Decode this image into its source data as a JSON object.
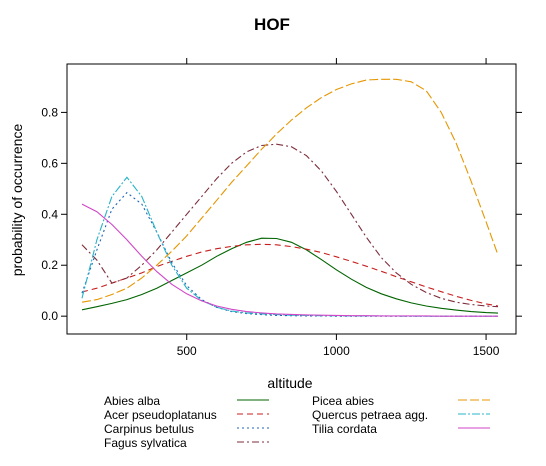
{
  "chart_data": {
    "type": "line",
    "title": "HOF",
    "xlabel": "altitude",
    "ylabel": "probability of occurrence",
    "xlim": [
      100,
      1600
    ],
    "ylim": [
      -0.07,
      0.99
    ],
    "xticks": [
      500,
      1000,
      1500
    ],
    "yticks": [
      0.0,
      0.2,
      0.4,
      0.6,
      0.8
    ],
    "xtick_labels": [
      "500",
      "1000",
      "1500"
    ],
    "ytick_labels": [
      "0.0",
      "0.2",
      "0.4",
      "0.6",
      "0.8"
    ],
    "grid": false,
    "legend_position": "bottom",
    "x": [
      150,
      200,
      250,
      300,
      350,
      400,
      450,
      500,
      550,
      600,
      650,
      700,
      750,
      800,
      850,
      900,
      950,
      1000,
      1050,
      1100,
      1150,
      1200,
      1250,
      1300,
      1350,
      1400,
      1450,
      1500,
      1540
    ],
    "series": [
      {
        "name": "Abies alba",
        "color": "#006400",
        "dash": "solid",
        "values": [
          0.025,
          0.037,
          0.05,
          0.065,
          0.085,
          0.11,
          0.14,
          0.17,
          0.2,
          0.235,
          0.265,
          0.29,
          0.306,
          0.305,
          0.29,
          0.26,
          0.222,
          0.182,
          0.145,
          0.113,
          0.088,
          0.068,
          0.052,
          0.04,
          0.031,
          0.024,
          0.018,
          0.014,
          0.012
        ]
      },
      {
        "name": "Acer pseudoplatanus",
        "color": "#c81e1e",
        "dash": "6,4",
        "values": [
          0.095,
          0.11,
          0.13,
          0.15,
          0.17,
          0.195,
          0.215,
          0.235,
          0.252,
          0.265,
          0.274,
          0.28,
          0.282,
          0.28,
          0.273,
          0.263,
          0.25,
          0.233,
          0.215,
          0.196,
          0.176,
          0.155,
          0.135,
          0.115,
          0.096,
          0.078,
          0.062,
          0.048,
          0.04
        ]
      },
      {
        "name": "Carpinus betulus",
        "color": "#1e64b4",
        "dash": "2,3",
        "values": [
          0.09,
          0.26,
          0.42,
          0.485,
          0.44,
          0.33,
          0.21,
          0.12,
          0.065,
          0.035,
          0.018,
          0.01,
          0.006,
          0.003,
          0.002,
          0.001,
          0.001,
          0.0,
          0.0,
          0.0,
          0.0,
          0.0,
          0.0,
          0.0,
          0.0,
          0.0,
          0.0,
          0.0,
          0.0
        ]
      },
      {
        "name": "Fagus sylvatica",
        "color": "#7d2d3c",
        "dash": "7,3,2,3",
        "values": [
          0.28,
          0.22,
          0.13,
          0.15,
          0.2,
          0.26,
          0.33,
          0.4,
          0.47,
          0.54,
          0.6,
          0.645,
          0.67,
          0.675,
          0.665,
          0.63,
          0.57,
          0.49,
          0.4,
          0.31,
          0.23,
          0.17,
          0.125,
          0.093,
          0.07,
          0.055,
          0.046,
          0.04,
          0.037
        ]
      },
      {
        "name": "Picea abies",
        "color": "#e69600",
        "dash": "9,3",
        "values": [
          0.055,
          0.065,
          0.085,
          0.11,
          0.15,
          0.2,
          0.255,
          0.315,
          0.385,
          0.455,
          0.525,
          0.59,
          0.655,
          0.715,
          0.77,
          0.818,
          0.858,
          0.89,
          0.912,
          0.927,
          0.93,
          0.93,
          0.92,
          0.885,
          0.8,
          0.68,
          0.53,
          0.37,
          0.24
        ]
      },
      {
        "name": "Quercus petraea agg.",
        "color": "#28b4c8",
        "dash": "8,2,2,2",
        "values": [
          0.07,
          0.3,
          0.47,
          0.545,
          0.47,
          0.33,
          0.2,
          0.11,
          0.062,
          0.035,
          0.02,
          0.013,
          0.009,
          0.006,
          0.004,
          0.003,
          0.002,
          0.002,
          0.001,
          0.001,
          0.001,
          0.0,
          0.0,
          0.0,
          0.0,
          0.0,
          0.0,
          0.0,
          0.0
        ]
      },
      {
        "name": "Tilia cordata",
        "color": "#d246c8",
        "dash": "solid",
        "values": [
          0.44,
          0.41,
          0.36,
          0.3,
          0.235,
          0.175,
          0.125,
          0.088,
          0.06,
          0.04,
          0.027,
          0.018,
          0.013,
          0.009,
          0.007,
          0.005,
          0.004,
          0.003,
          0.002,
          0.002,
          0.001,
          0.001,
          0.001,
          0.001,
          0.0,
          0.0,
          0.0,
          0.0,
          0.0
        ]
      }
    ]
  }
}
